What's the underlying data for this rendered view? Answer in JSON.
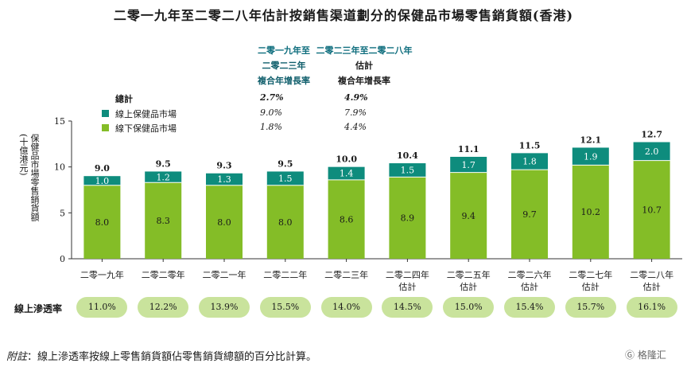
{
  "title": "二零一九年至二零二八年估計按銷售渠道劃分的保健品市場零售銷貨額(香港)",
  "cagr_headers": [
    {
      "lines": [
        "二零一九年至",
        "二零二三年",
        "複合年增長率"
      ]
    },
    {
      "lines": [
        "二零二三年至二零二八年",
        "估計",
        "複合年增長率"
      ]
    }
  ],
  "cagr_rows": [
    {
      "label": "總計",
      "v1": "2.7%",
      "v2": "4.9%",
      "bold": true
    },
    {
      "label": "線上保健品市場",
      "v1": "9.0%",
      "v2": "7.9%",
      "swatch": "#0e8c7d"
    },
    {
      "label": "線下保健品市場",
      "v1": "1.8%",
      "v2": "4.4%",
      "swatch": "#84bd27"
    }
  ],
  "y_axis_title": [
    "保健品市場零售銷貨額",
    "(十億港元)"
  ],
  "penetration": {
    "label": "線上滲透率",
    "values": [
      "11.0%",
      "12.2%",
      "13.9%",
      "15.5%",
      "14.0%",
      "14.5%",
      "15.0%",
      "15.4%",
      "15.7%",
      "16.1%"
    ]
  },
  "note": {
    "prefix": "附註",
    "text": "：線上滲透率按線上零售銷貨額佔零售銷貨總額的百分比計算。"
  },
  "watermark": "格隆汇",
  "colors": {
    "online": "#0e8c7d",
    "offline": "#84bd27",
    "pill": "#c9e39c"
  },
  "chart_data": {
    "type": "bar",
    "stacked": true,
    "categories": [
      [
        "二零一九年"
      ],
      [
        "二零二零年"
      ],
      [
        "二零二一年"
      ],
      [
        "二零二二年"
      ],
      [
        "二零二三年"
      ],
      [
        "二零二四年",
        "估計"
      ],
      [
        "二零二五年",
        "估計"
      ],
      [
        "二零二六年",
        "估計"
      ],
      [
        "二零二七年",
        "估計"
      ],
      [
        "二零二八年",
        "估計"
      ]
    ],
    "series": [
      {
        "name": "線下保健品市場",
        "values": [
          8.0,
          8.3,
          8.0,
          8.0,
          8.6,
          8.9,
          9.4,
          9.7,
          10.2,
          10.7
        ],
        "color": "#84bd27"
      },
      {
        "name": "線上保健品市場",
        "values": [
          1.0,
          1.2,
          1.3,
          1.5,
          1.4,
          1.5,
          1.7,
          1.8,
          1.9,
          2.0
        ],
        "color": "#0e8c7d"
      }
    ],
    "totals": [
      9.0,
      9.5,
      9.3,
      9.5,
      10.0,
      10.4,
      11.1,
      11.5,
      12.1,
      12.7
    ],
    "offline_labels": [
      "8.0",
      "8.3",
      "8.0",
      "8.0",
      "8.6",
      "8.9",
      "9.4",
      "9.7",
      "10.2",
      "10.7"
    ],
    "online_labels": [
      "1.0",
      "1.2",
      "1.3",
      "1.5",
      "1.4",
      "1.5",
      "1.7",
      "1.8",
      "1.9",
      "2.0"
    ],
    "total_labels": [
      "9.0",
      "9.5",
      "9.3",
      "9.5",
      "10.0",
      "10.4",
      "11.1",
      "11.5",
      "12.1",
      "12.7"
    ],
    "y_ticks": [
      "0",
      "5",
      "10",
      "15"
    ],
    "ylim": [
      0,
      15
    ],
    "grid": false
  }
}
